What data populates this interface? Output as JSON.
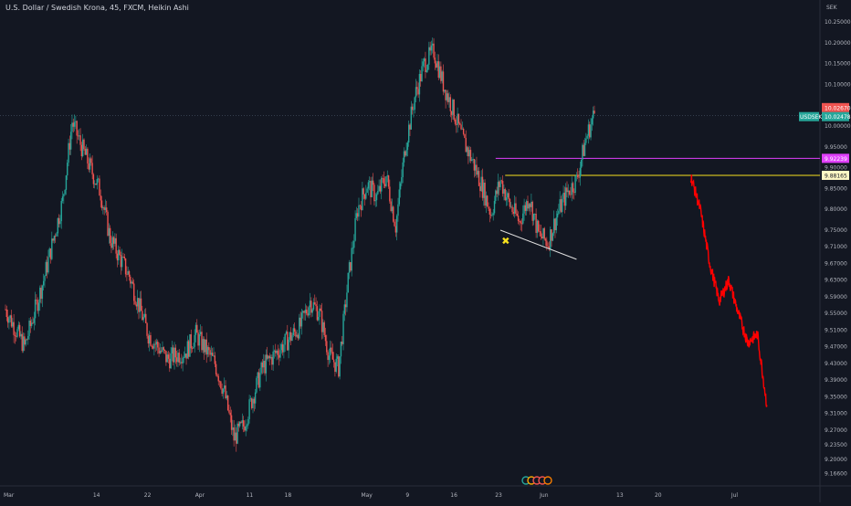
{
  "chart_data": {
    "type": "candlestick",
    "title": "U.S. Dollar / Swedish Krona, 45, FXCM, Heikin Ashi",
    "symbol": "USDSEK",
    "currency_label": "SEK",
    "ylim": [
      9.14,
      10.3
    ],
    "y_ticks": [
      "10.25000",
      "10.20000",
      "10.15000",
      "10.10000",
      "10.00000",
      "9.95000",
      "9.90000",
      "9.85000",
      "9.80000",
      "9.75000",
      "9.71000",
      "9.67000",
      "9.63000",
      "9.59000",
      "9.55000",
      "9.51000",
      "9.47000",
      "9.43000",
      "9.39000",
      "9.35000",
      "9.31000",
      "9.27000",
      "9.23500",
      "9.20000",
      "9.16600"
    ],
    "x_ticks": [
      "Mar",
      "14",
      "22",
      "Apr",
      "11",
      "18",
      "May",
      "9",
      "16",
      "23",
      "Jun",
      "13",
      "20",
      "Jul"
    ],
    "price_path": [
      {
        "x": 0,
        "y": 9.56
      },
      {
        "x": 2,
        "y": 9.47
      },
      {
        "x": 4,
        "y": 9.63
      },
      {
        "x": 6,
        "y": 9.82
      },
      {
        "x": 7,
        "y": 10.01
      },
      {
        "x": 8,
        "y": 9.95
      },
      {
        "x": 10,
        "y": 9.84
      },
      {
        "x": 11,
        "y": 9.73
      },
      {
        "x": 13,
        "y": 9.64
      },
      {
        "x": 15,
        "y": 9.5
      },
      {
        "x": 17,
        "y": 9.44
      },
      {
        "x": 19,
        "y": 9.46
      },
      {
        "x": 20,
        "y": 9.5
      },
      {
        "x": 22,
        "y": 9.43
      },
      {
        "x": 23,
        "y": 9.36
      },
      {
        "x": 24,
        "y": 9.25
      },
      {
        "x": 25,
        "y": 9.28
      },
      {
        "x": 27,
        "y": 9.42
      },
      {
        "x": 29,
        "y": 9.47
      },
      {
        "x": 31,
        "y": 9.52
      },
      {
        "x": 32,
        "y": 9.58
      },
      {
        "x": 33,
        "y": 9.55
      },
      {
        "x": 34,
        "y": 9.45
      },
      {
        "x": 35,
        "y": 9.42
      },
      {
        "x": 36,
        "y": 9.63
      },
      {
        "x": 37,
        "y": 9.8
      },
      {
        "x": 38,
        "y": 9.86
      },
      {
        "x": 39,
        "y": 9.83
      },
      {
        "x": 40,
        "y": 9.88
      },
      {
        "x": 41,
        "y": 9.76
      },
      {
        "x": 42,
        "y": 9.95
      },
      {
        "x": 43,
        "y": 10.07
      },
      {
        "x": 44,
        "y": 10.15
      },
      {
        "x": 45,
        "y": 10.18
      },
      {
        "x": 46,
        "y": 10.1
      },
      {
        "x": 47,
        "y": 10.04
      },
      {
        "x": 48,
        "y": 9.97
      },
      {
        "x": 49,
        "y": 9.92
      },
      {
        "x": 50,
        "y": 9.86
      },
      {
        "x": 51,
        "y": 9.79
      },
      {
        "x": 52,
        "y": 9.87
      },
      {
        "x": 53,
        "y": 9.81
      },
      {
        "x": 54,
        "y": 9.77
      },
      {
        "x": 55,
        "y": 9.83
      },
      {
        "x": 56,
        "y": 9.74
      },
      {
        "x": 57,
        "y": 9.72
      },
      {
        "x": 58,
        "y": 9.79
      },
      {
        "x": 59,
        "y": 9.84
      },
      {
        "x": 60,
        "y": 9.87
      },
      {
        "x": 61,
        "y": 9.97
      },
      {
        "x": 62,
        "y": 10.04
      }
    ],
    "projection_path": [
      {
        "x": 72,
        "y": 9.88
      },
      {
        "x": 73,
        "y": 9.8
      },
      {
        "x": 74,
        "y": 9.67
      },
      {
        "x": 75,
        "y": 9.58
      },
      {
        "x": 76,
        "y": 9.63
      },
      {
        "x": 77,
        "y": 9.55
      },
      {
        "x": 78,
        "y": 9.48
      },
      {
        "x": 79,
        "y": 9.5
      },
      {
        "x": 80,
        "y": 9.33
      }
    ],
    "levels": [
      {
        "name": "current",
        "value": 10.02478,
        "label": "10.02478",
        "color": "#26a69a"
      },
      {
        "name": "magenta",
        "value": 9.92239,
        "label": "9.92239",
        "color": "#e040fb"
      },
      {
        "name": "yellow",
        "value": 9.88165,
        "label": "9.88165",
        "color": "#f7e11e"
      },
      {
        "name": "bid",
        "value": 10.0267,
        "label": "10.02670",
        "color": "#ef5350"
      }
    ],
    "annotations": [
      {
        "type": "trendline",
        "from": {
          "x": 52,
          "y": 9.75
        },
        "to": {
          "x": 60,
          "y": 9.68
        },
        "color": "#e0e0e0"
      },
      {
        "type": "marker",
        "symbol": "✖",
        "at": {
          "x": 52.5,
          "y": 9.725
        },
        "color": "#f7e11e"
      }
    ],
    "grid": false,
    "colors": {
      "background": "#131722",
      "up": "#26a69a",
      "down": "#ef5350",
      "projection": "#ff0000",
      "axis_text": "#b2b5be"
    }
  }
}
